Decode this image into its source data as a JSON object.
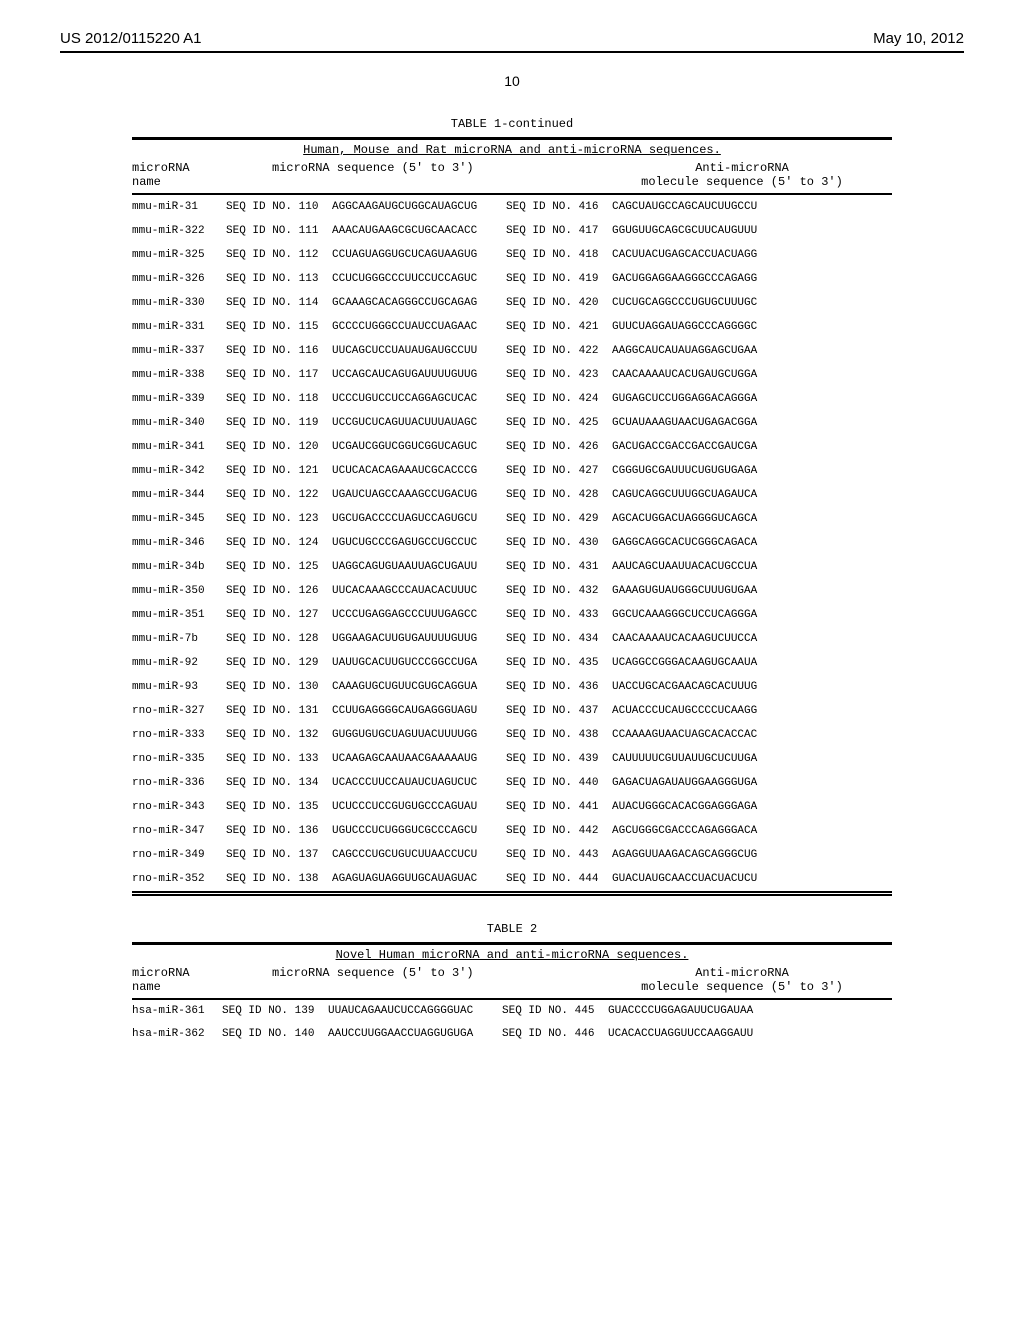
{
  "header": {
    "patent_number": "US 2012/0115220 A1",
    "pub_date": "May 10, 2012",
    "page": "10"
  },
  "table1": {
    "title": "TABLE 1-continued",
    "subtitle": "Human, Mouse and Rat microRNA and anti-microRNA sequences.",
    "col_headers": {
      "name": "microRNA\nname",
      "seq": "microRNA sequence (5' to 3')",
      "anti": "Anti-microRNA\nmolecule sequence (5' to 3')"
    },
    "rows": [
      {
        "name": "mmu-miR-31",
        "sid1": "SEQ ID NO. 110",
        "seq": "AGGCAAGAUGCUGGCAUAGCUG",
        "sid2": "SEQ ID NO. 416",
        "anti": "CAGCUAUGCCAGCAUCUUGCCU"
      },
      {
        "name": "mmu-miR-322",
        "sid1": "SEQ ID NO. 111",
        "seq": "AAACAUGAAGCGCUGCAACACC",
        "sid2": "SEQ ID NO. 417",
        "anti": "GGUGUUGCAGCGCUUCAUGUUU"
      },
      {
        "name": "mmu-miR-325",
        "sid1": "SEQ ID NO. 112",
        "seq": "CCUAGUAGGUGCUCAGUAAGUG",
        "sid2": "SEQ ID NO. 418",
        "anti": "CACUUACUGAGCACCUACUAGG"
      },
      {
        "name": "mmu-miR-326",
        "sid1": "SEQ ID NO. 113",
        "seq": "CCUCUGGGCCCUUCCUCCAGUC",
        "sid2": "SEQ ID NO. 419",
        "anti": "GACUGGAGGAAGGGCCCAGAGG"
      },
      {
        "name": "mmu-miR-330",
        "sid1": "SEQ ID NO. 114",
        "seq": "GCAAAGCACAGGGCCUGCAGAG",
        "sid2": "SEQ ID NO. 420",
        "anti": "CUCUGCAGGCCCUGUGCUUUGC"
      },
      {
        "name": "mmu-miR-331",
        "sid1": "SEQ ID NO. 115",
        "seq": "GCCCCUGGGCCUAUCCUAGAAC",
        "sid2": "SEQ ID NO. 421",
        "anti": "GUUCUAGGAUAGGCCCAGGGGC"
      },
      {
        "name": "mmu-miR-337",
        "sid1": "SEQ ID NO. 116",
        "seq": "UUCAGCUCCUAUAUGAUGCCUU",
        "sid2": "SEQ ID NO. 422",
        "anti": "AAGGCAUCAUAUAGGAGCUGAA"
      },
      {
        "name": "mmu-miR-338",
        "sid1": "SEQ ID NO. 117",
        "seq": "UCCAGCAUCAGUGAUUUUGUUG",
        "sid2": "SEQ ID NO. 423",
        "anti": "CAACAAAAUCACUGAUGCUGGA"
      },
      {
        "name": "mmu-miR-339",
        "sid1": "SEQ ID NO. 118",
        "seq": "UCCCUGUCCUCCAGGAGCUCAC",
        "sid2": "SEQ ID NO. 424",
        "anti": "GUGAGCUCCUGGAGGACAGGGA"
      },
      {
        "name": "mmu-miR-340",
        "sid1": "SEQ ID NO. 119",
        "seq": "UCCGUCUCAGUUACUUUAUAGC",
        "sid2": "SEQ ID NO. 425",
        "anti": "GCUAUAAAGUAACUGAGACGGA"
      },
      {
        "name": "mmu-miR-341",
        "sid1": "SEQ ID NO. 120",
        "seq": "UCGAUCGGUCGGUCGGUCAGUC",
        "sid2": "SEQ ID NO. 426",
        "anti": "GACUGACCGACCGACCGAUCGA"
      },
      {
        "name": "mmu-miR-342",
        "sid1": "SEQ ID NO. 121",
        "seq": "UCUCACACAGAAAUCGCACCCG",
        "sid2": "SEQ ID NO. 427",
        "anti": "CGGGUGCGAUUUCUGUGUGAGA"
      },
      {
        "name": "mmu-miR-344",
        "sid1": "SEQ ID NO. 122",
        "seq": "UGAUCUAGCCAAAGCCUGACUG",
        "sid2": "SEQ ID NO. 428",
        "anti": "CAGUCAGGCUUUGGCUAGAUCA"
      },
      {
        "name": "mmu-miR-345",
        "sid1": "SEQ ID NO. 123",
        "seq": "UGCUGACCCCUAGUCCAGUGCU",
        "sid2": "SEQ ID NO. 429",
        "anti": "AGCACUGGACUAGGGGUCAGCA"
      },
      {
        "name": "mmu-miR-346",
        "sid1": "SEQ ID NO. 124",
        "seq": "UGUCUGCCCGAGUGCCUGCCUC",
        "sid2": "SEQ ID NO. 430",
        "anti": "GAGGCAGGCACUCGGGCAGACA"
      },
      {
        "name": "mmu-miR-34b",
        "sid1": "SEQ ID NO. 125",
        "seq": "UAGGCAGUGUAAUUAGCUGAUU",
        "sid2": "SEQ ID NO. 431",
        "anti": "AAUCAGCUAAUUACACUGCCUA"
      },
      {
        "name": "mmu-miR-350",
        "sid1": "SEQ ID NO. 126",
        "seq": "UUCACAAAGCCCAUACACUUUC",
        "sid2": "SEQ ID NO. 432",
        "anti": "GAAAGUGUAUGGGCUUUGUGAA"
      },
      {
        "name": "mmu-miR-351",
        "sid1": "SEQ ID NO. 127",
        "seq": "UCCCUGAGGAGCCCUUUGAGCC",
        "sid2": "SEQ ID NO. 433",
        "anti": "GGCUCAAAGGGCUCCUCAGGGA"
      },
      {
        "name": "mmu-miR-7b",
        "sid1": "SEQ ID NO. 128",
        "seq": "UGGAAGACUUGUGAUUUUGUUG",
        "sid2": "SEQ ID NO. 434",
        "anti": "CAACAAAAUCACAAGUCUUCCA"
      },
      {
        "name": "mmu-miR-92",
        "sid1": "SEQ ID NO. 129",
        "seq": "UAUUGCACUUGUCCCGGCCUGA",
        "sid2": "SEQ ID NO. 435",
        "anti": "UCAGGCCGGGACAAGUGCAAUA"
      },
      {
        "name": "mmu-miR-93",
        "sid1": "SEQ ID NO. 130",
        "seq": "CAAAGUGCUGUUCGUGCAGGUA",
        "sid2": "SEQ ID NO. 436",
        "anti": "UACCUGCACGAACAGCACUUUG"
      },
      {
        "name": "rno-miR-327",
        "sid1": "SEQ ID NO. 131",
        "seq": "CCUUGAGGGGCAUGAGGGUAGU",
        "sid2": "SEQ ID NO. 437",
        "anti": "ACUACCCUCAUGCCCCUCAAGG"
      },
      {
        "name": "rno-miR-333",
        "sid1": "SEQ ID NO. 132",
        "seq": "GUGGUGUGCUAGUUACUUUUGG",
        "sid2": "SEQ ID NO. 438",
        "anti": "CCAAAAGUAACUAGCACACCAC"
      },
      {
        "name": "rno-miR-335",
        "sid1": "SEQ ID NO. 133",
        "seq": "UCAAGAGCAAUAACGAAAAAUG",
        "sid2": "SEQ ID NO. 439",
        "anti": "CAUUUUUCGUUAUUGCUCUUGA"
      },
      {
        "name": "rno-miR-336",
        "sid1": "SEQ ID NO. 134",
        "seq": "UCACCCUUCCAUAUCUAGUCUC",
        "sid2": "SEQ ID NO. 440",
        "anti": "GAGACUAGAUAUGGAAGGGUGA"
      },
      {
        "name": "rno-miR-343",
        "sid1": "SEQ ID NO. 135",
        "seq": "UCUCCCUCCGUGUGCCCAGUAU",
        "sid2": "SEQ ID NO. 441",
        "anti": "AUACUGGGCACACGGAGGGAGA"
      },
      {
        "name": "rno-miR-347",
        "sid1": "SEQ ID NO. 136",
        "seq": "UGUCCCUCUGGGUCGCCCAGCU",
        "sid2": "SEQ ID NO. 442",
        "anti": "AGCUGGGCGACCCAGAGGGACA"
      },
      {
        "name": "rno-miR-349",
        "sid1": "SEQ ID NO. 137",
        "seq": "CAGCCCUGCUGUCUUAACCUCU",
        "sid2": "SEQ ID NO. 443",
        "anti": "AGAGGUUAAGACAGCAGGGCUG"
      },
      {
        "name": "rno-miR-352",
        "sid1": "SEQ ID NO. 138",
        "seq": "AGAGUAGUAGGUUGCAUAGUAC",
        "sid2": "SEQ ID NO. 444",
        "anti": "GUACUAUGCAACCUACUACUCU"
      }
    ]
  },
  "table2": {
    "title": "TABLE 2",
    "subtitle": "Novel Human microRNA and anti-microRNA sequences.",
    "col_headers": {
      "name": "microRNA\nname",
      "seq": "microRNA sequence (5' to 3')",
      "anti": "Anti-microRNA\nmolecule sequence (5' to 3')"
    },
    "rows": [
      {
        "name": "hsa-miR-361",
        "sid1": "SEQ ID NO. 139",
        "seq": "UUAUCAGAAUCUCCAGGGGUAC",
        "sid2": "SEQ ID NO. 445",
        "anti": "GUACCCCUGGAGAUUCUGAUAA"
      },
      {
        "name": "hsa-miR-362",
        "sid1": "SEQ ID NO. 140",
        "seq": "AAUCCUUGGAACCUAGGUGUGA",
        "sid2": "SEQ ID NO. 446",
        "anti": "UCACACCUAGGUUCCAAGGAUU"
      }
    ]
  }
}
